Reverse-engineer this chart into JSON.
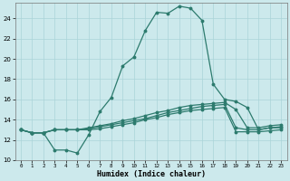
{
  "xlabel": "Humidex (Indice chaleur)",
  "bg_color": "#cce9ec",
  "line_color": "#2d7b6e",
  "grid_color": "#aad4d8",
  "xlim": [
    -0.5,
    23.5
  ],
  "ylim": [
    10,
    25.5
  ],
  "yticks": [
    10,
    12,
    14,
    16,
    18,
    20,
    22,
    24
  ],
  "xticks": [
    0,
    1,
    2,
    3,
    4,
    5,
    6,
    7,
    8,
    9,
    10,
    11,
    12,
    13,
    14,
    15,
    16,
    17,
    18,
    19,
    20,
    21,
    22,
    23
  ],
  "line1_x": [
    0,
    1,
    2,
    3,
    4,
    5,
    6,
    7,
    8,
    9,
    10,
    11,
    12,
    13,
    14,
    15,
    16,
    17,
    18,
    19,
    20,
    21,
    22,
    23
  ],
  "line1_y": [
    13.0,
    12.7,
    12.7,
    11.0,
    11.0,
    10.7,
    12.5,
    14.8,
    16.2,
    19.3,
    20.2,
    22.8,
    24.6,
    24.5,
    25.2,
    25.0,
    23.8,
    17.5,
    16.0,
    15.8,
    15.2,
    13.0,
    13.2,
    13.2
  ],
  "line2_x": [
    0,
    1,
    2,
    3,
    4,
    5,
    6,
    7,
    8,
    9,
    10,
    11,
    12,
    13,
    14,
    15,
    16,
    17,
    18,
    19,
    20,
    21,
    22,
    23
  ],
  "line2_y": [
    13.0,
    12.7,
    12.7,
    13.0,
    13.0,
    13.0,
    13.2,
    13.4,
    13.6,
    13.9,
    14.1,
    14.4,
    14.7,
    14.9,
    15.2,
    15.4,
    15.5,
    15.6,
    15.7,
    15.0,
    13.2,
    13.2,
    13.4,
    13.5
  ],
  "line3_x": [
    0,
    1,
    2,
    3,
    4,
    5,
    6,
    7,
    8,
    9,
    10,
    11,
    12,
    13,
    14,
    15,
    16,
    17,
    18,
    19,
    20,
    21,
    22,
    23
  ],
  "line3_y": [
    13.0,
    12.7,
    12.7,
    13.0,
    13.0,
    13.0,
    13.1,
    13.3,
    13.5,
    13.7,
    13.9,
    14.1,
    14.4,
    14.7,
    14.9,
    15.1,
    15.3,
    15.4,
    15.5,
    13.2,
    13.0,
    13.0,
    13.2,
    13.3
  ],
  "line4_x": [
    0,
    1,
    2,
    3,
    4,
    5,
    6,
    7,
    8,
    9,
    10,
    11,
    12,
    13,
    14,
    15,
    16,
    17,
    18,
    19,
    20,
    21,
    22,
    23
  ],
  "line4_y": [
    13.0,
    12.7,
    12.7,
    13.0,
    13.0,
    13.0,
    13.0,
    13.1,
    13.3,
    13.5,
    13.7,
    14.0,
    14.2,
    14.5,
    14.7,
    14.9,
    15.0,
    15.1,
    15.2,
    12.8,
    12.8,
    12.8,
    12.9,
    13.0
  ]
}
